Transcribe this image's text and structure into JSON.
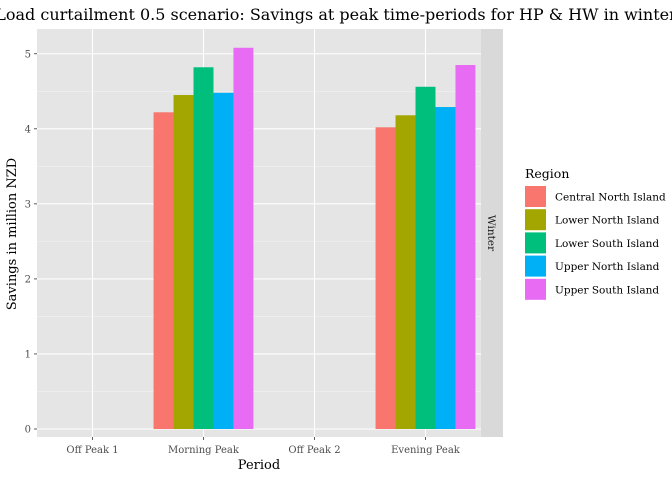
{
  "chart_data": {
    "type": "bar",
    "title": "Load curtailment 0.5 scenario: Savings at peak time-periods for HP & HW in winter",
    "xlabel": "Period",
    "ylabel": "Savings in million NZD",
    "ylim": [
      0,
      5.25
    ],
    "yticks": [
      "0",
      "1",
      "2",
      "3",
      "4",
      "5"
    ],
    "categories": [
      "Off Peak 1",
      "Morning Peak",
      "Off Peak 2",
      "Evening Peak"
    ],
    "facet_label": "Winter",
    "legend_title": "Region",
    "legend_position": "right",
    "grid": true,
    "series": [
      {
        "name": "Central North Island",
        "color": "#F8766D",
        "values": [
          null,
          4.22,
          null,
          4.02
        ]
      },
      {
        "name": "Lower North Island",
        "color": "#A3A500",
        "values": [
          null,
          4.45,
          null,
          4.18
        ]
      },
      {
        "name": "Lower South Island",
        "color": "#00BF7D",
        "values": [
          null,
          4.82,
          null,
          4.56
        ]
      },
      {
        "name": "Upper North Island",
        "color": "#00B0F6",
        "values": [
          null,
          4.48,
          null,
          4.29
        ]
      },
      {
        "name": "Upper South Island",
        "color": "#E76BF3",
        "values": [
          null,
          5.08,
          null,
          4.85
        ]
      }
    ]
  }
}
